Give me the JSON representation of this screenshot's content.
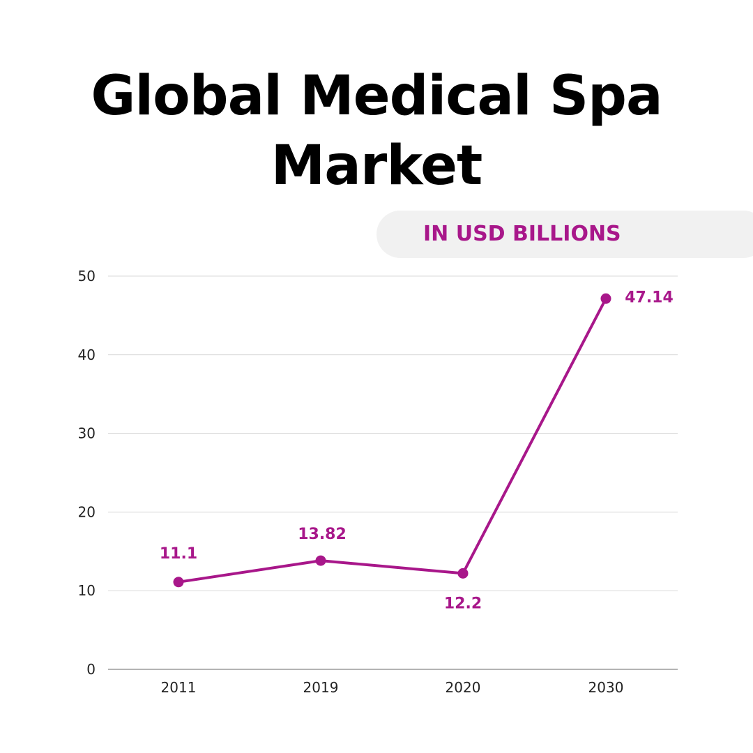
{
  "title_line1": "Global Medical Spa",
  "title_line2": "Market",
  "unit_badge": "IN USD BILLIONS",
  "colors": {
    "accent": "#a8178a",
    "grid": "#d9d9d9",
    "axis": "#9a9a9a",
    "pill_bg": "#f1f1f1"
  },
  "chart_data": {
    "type": "line",
    "title": "Global Medical Spa Market",
    "subtitle": "IN USD BILLIONS",
    "categories": [
      "2011",
      "2019",
      "2020",
      "2030"
    ],
    "series": [
      {
        "values": [
          11.1,
          13.82,
          12.2,
          47.14
        ]
      }
    ],
    "data_labels": [
      "11.1",
      "13.82",
      "12.2",
      "47.14"
    ],
    "y_ticks": [
      "0",
      "10",
      "20",
      "30",
      "40",
      "50"
    ],
    "ylim": [
      0,
      50
    ],
    "grid": true,
    "legend": "none"
  }
}
